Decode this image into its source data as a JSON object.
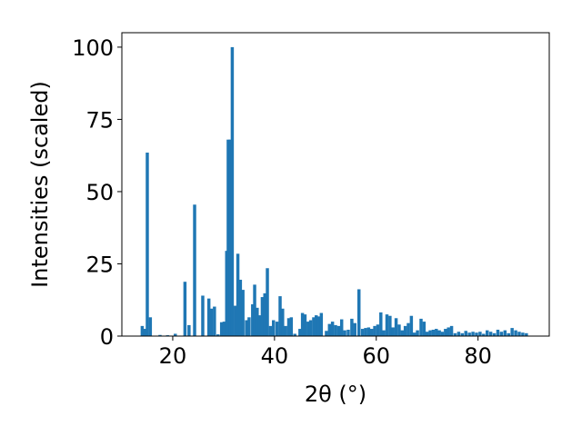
{
  "chart_data": {
    "type": "bar",
    "xlabel": "2θ (°)",
    "ylabel": "Intensities (scaled)",
    "xlim": [
      10,
      94
    ],
    "ylim": [
      0,
      105
    ],
    "x_ticks": [
      20,
      40,
      60,
      80
    ],
    "y_ticks": [
      0,
      25,
      50,
      75,
      100
    ],
    "bar_color": "#1f77b4",
    "bar_width": 0.62,
    "grid": false,
    "points": [
      {
        "x": 14.0,
        "y": 3.5
      },
      {
        "x": 14.5,
        "y": 2.5
      },
      {
        "x": 15.0,
        "y": 63.5
      },
      {
        "x": 15.6,
        "y": 6.5
      },
      {
        "x": 17.5,
        "y": 0.4
      },
      {
        "x": 19.0,
        "y": 0.3
      },
      {
        "x": 20.5,
        "y": 0.8
      },
      {
        "x": 22.4,
        "y": 18.8
      },
      {
        "x": 23.2,
        "y": 3.8
      },
      {
        "x": 24.3,
        "y": 45.5
      },
      {
        "x": 25.9,
        "y": 14.0
      },
      {
        "x": 27.1,
        "y": 13.0
      },
      {
        "x": 27.6,
        "y": 9.5
      },
      {
        "x": 28.2,
        "y": 10.2
      },
      {
        "x": 28.9,
        "y": 0.6
      },
      {
        "x": 29.6,
        "y": 4.8
      },
      {
        "x": 30.1,
        "y": 5.0
      },
      {
        "x": 30.6,
        "y": 29.5
      },
      {
        "x": 30.9,
        "y": 68.0
      },
      {
        "x": 31.3,
        "y": 68.0
      },
      {
        "x": 31.7,
        "y": 100.0
      },
      {
        "x": 32.3,
        "y": 10.5
      },
      {
        "x": 32.8,
        "y": 28.5
      },
      {
        "x": 33.3,
        "y": 19.5
      },
      {
        "x": 33.8,
        "y": 16.0
      },
      {
        "x": 34.5,
        "y": 5.5
      },
      {
        "x": 35.0,
        "y": 6.5
      },
      {
        "x": 35.7,
        "y": 11.0
      },
      {
        "x": 36.1,
        "y": 17.8
      },
      {
        "x": 36.6,
        "y": 9.8
      },
      {
        "x": 37.1,
        "y": 7.2
      },
      {
        "x": 37.6,
        "y": 13.5
      },
      {
        "x": 38.1,
        "y": 14.8
      },
      {
        "x": 38.6,
        "y": 23.5
      },
      {
        "x": 39.2,
        "y": 3.5
      },
      {
        "x": 39.8,
        "y": 5.5
      },
      {
        "x": 40.5,
        "y": 5.0
      },
      {
        "x": 41.1,
        "y": 13.8
      },
      {
        "x": 41.6,
        "y": 9.5
      },
      {
        "x": 42.2,
        "y": 3.5
      },
      {
        "x": 42.8,
        "y": 6.2
      },
      {
        "x": 43.3,
        "y": 6.5
      },
      {
        "x": 44.0,
        "y": 0.8
      },
      {
        "x": 45.0,
        "y": 2.5
      },
      {
        "x": 45.5,
        "y": 8.0
      },
      {
        "x": 46.0,
        "y": 7.5
      },
      {
        "x": 46.6,
        "y": 5.0
      },
      {
        "x": 47.1,
        "y": 5.5
      },
      {
        "x": 47.7,
        "y": 6.5
      },
      {
        "x": 48.2,
        "y": 7.2
      },
      {
        "x": 48.7,
        "y": 6.8
      },
      {
        "x": 49.2,
        "y": 8.0
      },
      {
        "x": 50.2,
        "y": 1.8
      },
      {
        "x": 50.8,
        "y": 4.2
      },
      {
        "x": 51.4,
        "y": 5.0
      },
      {
        "x": 52.0,
        "y": 3.8
      },
      {
        "x": 52.6,
        "y": 3.5
      },
      {
        "x": 53.2,
        "y": 5.8
      },
      {
        "x": 53.8,
        "y": 2.0
      },
      {
        "x": 54.5,
        "y": 2.2
      },
      {
        "x": 55.2,
        "y": 6.0
      },
      {
        "x": 55.8,
        "y": 4.5
      },
      {
        "x": 56.6,
        "y": 16.2
      },
      {
        "x": 57.3,
        "y": 2.5
      },
      {
        "x": 57.9,
        "y": 2.8
      },
      {
        "x": 58.5,
        "y": 3.0
      },
      {
        "x": 59.1,
        "y": 2.5
      },
      {
        "x": 59.7,
        "y": 3.5
      },
      {
        "x": 60.3,
        "y": 4.0
      },
      {
        "x": 60.9,
        "y": 8.2
      },
      {
        "x": 61.5,
        "y": 2.0
      },
      {
        "x": 62.1,
        "y": 7.5
      },
      {
        "x": 62.7,
        "y": 7.0
      },
      {
        "x": 63.3,
        "y": 3.0
      },
      {
        "x": 63.9,
        "y": 6.2
      },
      {
        "x": 64.5,
        "y": 4.0
      },
      {
        "x": 65.1,
        "y": 2.0
      },
      {
        "x": 65.7,
        "y": 3.5
      },
      {
        "x": 66.3,
        "y": 4.5
      },
      {
        "x": 66.9,
        "y": 7.0
      },
      {
        "x": 67.5,
        "y": 1.2
      },
      {
        "x": 68.1,
        "y": 2.0
      },
      {
        "x": 68.8,
        "y": 6.0
      },
      {
        "x": 69.4,
        "y": 5.0
      },
      {
        "x": 70.0,
        "y": 1.5
      },
      {
        "x": 70.6,
        "y": 2.0
      },
      {
        "x": 71.2,
        "y": 2.2
      },
      {
        "x": 71.8,
        "y": 2.5
      },
      {
        "x": 72.4,
        "y": 2.0
      },
      {
        "x": 73.0,
        "y": 1.5
      },
      {
        "x": 73.6,
        "y": 2.5
      },
      {
        "x": 74.2,
        "y": 3.0
      },
      {
        "x": 74.8,
        "y": 3.5
      },
      {
        "x": 75.5,
        "y": 1.0
      },
      {
        "x": 76.2,
        "y": 1.5
      },
      {
        "x": 76.9,
        "y": 1.0
      },
      {
        "x": 77.6,
        "y": 1.8
      },
      {
        "x": 78.3,
        "y": 1.2
      },
      {
        "x": 79.0,
        "y": 1.5
      },
      {
        "x": 79.7,
        "y": 1.2
      },
      {
        "x": 80.4,
        "y": 1.5
      },
      {
        "x": 81.1,
        "y": 0.8
      },
      {
        "x": 81.8,
        "y": 2.0
      },
      {
        "x": 82.5,
        "y": 1.5
      },
      {
        "x": 83.2,
        "y": 1.0
      },
      {
        "x": 83.9,
        "y": 2.2
      },
      {
        "x": 84.6,
        "y": 1.5
      },
      {
        "x": 85.3,
        "y": 2.0
      },
      {
        "x": 86.0,
        "y": 1.0
      },
      {
        "x": 86.7,
        "y": 2.8
      },
      {
        "x": 87.4,
        "y": 2.0
      },
      {
        "x": 88.1,
        "y": 1.5
      },
      {
        "x": 88.8,
        "y": 1.2
      },
      {
        "x": 89.5,
        "y": 1.0
      }
    ]
  }
}
